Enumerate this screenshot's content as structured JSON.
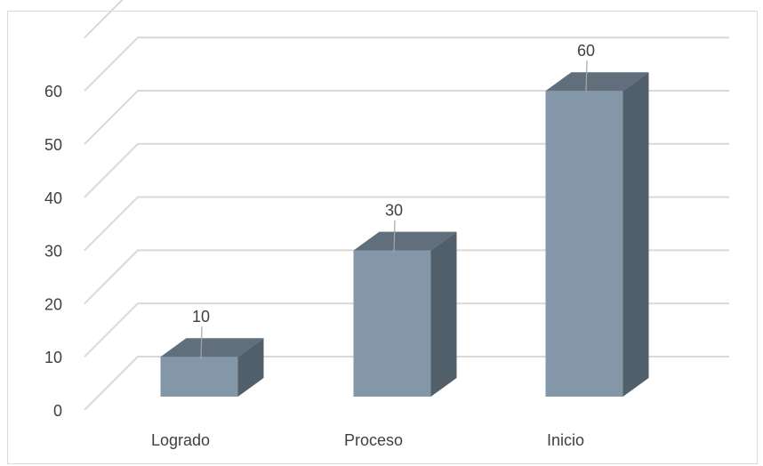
{
  "chart_data": {
    "type": "bar",
    "variant": "3d-column",
    "title": "",
    "xlabel": "",
    "ylabel": "",
    "categories": [
      "Logrado",
      "Proceso",
      "Inicio"
    ],
    "values": [
      10,
      30,
      60
    ],
    "data_labels": [
      "10",
      "30",
      "60"
    ],
    "ylim": [
      0,
      60
    ],
    "yticks": [
      0,
      10,
      20,
      30,
      40,
      50,
      60
    ],
    "ytick_labels": [
      "0",
      "10",
      "20",
      "30",
      "40",
      "50",
      "60"
    ],
    "grid": true,
    "legend": "none",
    "colors": {
      "bar_front": "#8497a8",
      "bar_top": "#616f7d",
      "bar_side": "#515f6b",
      "gridline": "#d9d9d9",
      "text": "#404040"
    }
  }
}
